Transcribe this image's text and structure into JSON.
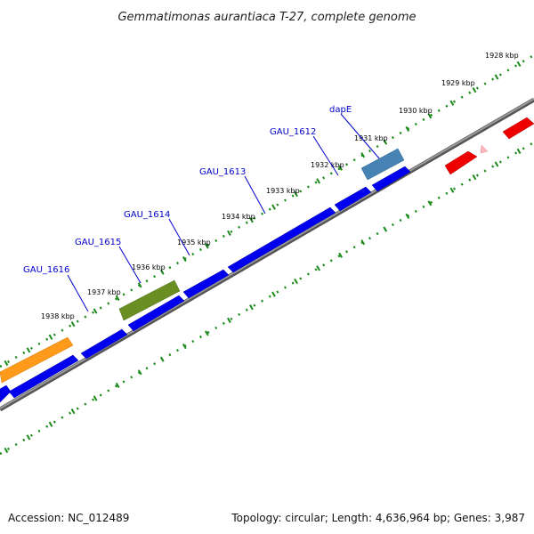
{
  "title": "Gemmatimonas aurantiaca T-27, complete genome",
  "accession": "Accession: NC_012489",
  "summary": "Topology: circular; Length: 4,636,964 bp; Genes: 3,987",
  "colors": {
    "backbone": "#7a7a7a",
    "tick": "#1a8a1a",
    "label_color": "#0000cc",
    "cds": "#0000ee"
  },
  "ticks": [
    {
      "label": "1928 kbp"
    },
    {
      "label": "1929 kbp"
    },
    {
      "label": "1930 kbp"
    },
    {
      "label": "1931 kbp"
    },
    {
      "label": "1932 kbp"
    },
    {
      "label": "1933 kbp"
    },
    {
      "label": "1934 kbp"
    },
    {
      "label": "1935 kbp"
    },
    {
      "label": "1936 kbp"
    },
    {
      "label": "1937 kbp"
    },
    {
      "label": "1938 kbp"
    }
  ],
  "gene_labels": [
    {
      "name": "dapE"
    },
    {
      "name": "GAU_1612"
    },
    {
      "name": "GAU_1613"
    },
    {
      "name": "GAU_1614"
    },
    {
      "name": "GAU_1615"
    },
    {
      "name": "GAU_1616"
    }
  ],
  "features": [
    {
      "id": "feature-orange",
      "color": "#ff9a1a"
    },
    {
      "id": "feature-olive",
      "color": "#6b8e23"
    },
    {
      "id": "feature-steelblue",
      "color": "#4682b4"
    },
    {
      "id": "feature-red-1",
      "color": "#ee0000"
    },
    {
      "id": "feature-red-2",
      "color": "#ee0000"
    },
    {
      "id": "feature-pink",
      "color": "#ffb6c1"
    }
  ]
}
